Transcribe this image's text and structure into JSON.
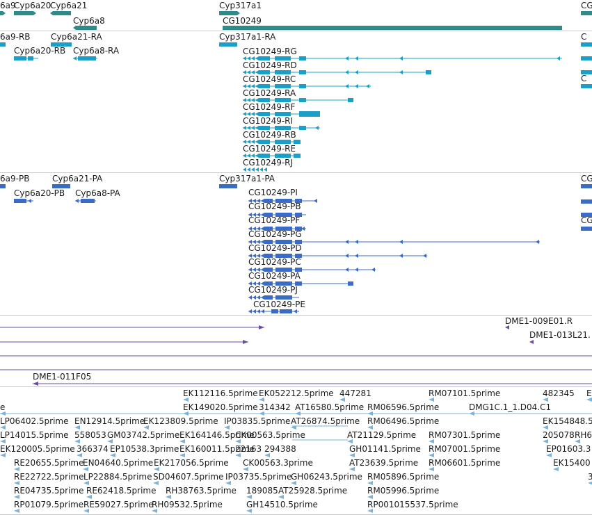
{
  "colors": {
    "gene": "#2e8b8b",
    "transcript": "#1aa0c8",
    "protein": "#3a6bc9",
    "clone": "#6a4ca8",
    "est": "#7ab3de",
    "separator": "#c8c8c8",
    "text": "#1a1a1a"
  },
  "tracks": {
    "genes": {
      "labels": [
        "6a9",
        "Cyp6a20",
        "Cyp6a21",
        "Cyp317a1",
        "Cyp6a8",
        "CG10249",
        "CG"
      ]
    },
    "transcripts": {
      "labels": [
        "6a9-RB",
        "Cyp6a21-RA",
        "Cyp317a1-RA",
        "Cyp6a20-RB",
        "Cyp6a8-RA",
        "CG10249-RG",
        "CG10249-RD",
        "CG10249-RC",
        "CG10249-RA",
        "CG10249-RF",
        "CG10249-RI",
        "CG10249-RB",
        "CG10249-RE",
        "CG10249-RJ",
        "C",
        "C"
      ]
    },
    "proteins": {
      "labels": [
        "6a9-PB",
        "Cyp6a21-PA",
        "Cyp317a1-PA",
        "Cyp6a20-PB",
        "Cyp6a8-PA",
        "CG10249-PI",
        "CG10249-PB",
        "CG10249-PF",
        "CG10249-PG",
        "CG10249-PD",
        "CG10249-PC",
        "CG10249-PA",
        "CG10249-PJ",
        "CG10249-PE",
        "CG",
        "CG"
      ]
    },
    "clones": {
      "labels": [
        "DME1-009E01.R",
        "DME1-013L21.",
        "DME1-011F05"
      ]
    },
    "ests": {
      "labels": [
        "EK112116.5prime",
        "EK052212.5prime",
        "447281",
        "RM07101.5prime",
        "482345",
        "E",
        "e",
        "EK149020.5prime",
        "314342",
        "AT16580.5prime",
        "RM06596.5prime",
        "DMG1C.1_1.D04.C1",
        "LP06402.5prime",
        "EN12914.5prime",
        "EK123809.5prime",
        "IP03835.5prime",
        "AT26874.5prime",
        "RM06496.5prime",
        "EK154848.5",
        "LP14015.5prime",
        "558053",
        "GM03742.5prime",
        "EK164146.5prime",
        "CK00563.5prime",
        "AT21129.5prime",
        "RM07301.5prime",
        "205078",
        "RH6",
        "EK120005.5prime",
        "366374",
        "EP10538.3prime",
        "EK160011.5prime",
        "22163",
        "294388",
        "GH01141.5prime",
        "RM07001.5prime",
        "EP01603.3",
        "RE20655.5prime",
        "EN04640.5prime",
        "EK217056.5prime",
        "CK00563.3prime",
        "AT23639.5prime",
        "RM06601.5prime",
        "EK15400",
        "RE22722.5prime",
        "LP22884.5prime",
        "SD04607.5prime",
        "IP03735.5prime",
        "GH06243.5prime",
        "RM05896.5prime",
        "3",
        "RE04735.5prime",
        "RE62418.5prime",
        "RH38763.5prime",
        "189085",
        "AT25928.5prime",
        "RM05996.5prime",
        "RP01079.5prime",
        "RE59027.5prime",
        "RH09532.5prime",
        "GH14510.5prime",
        "RP001015537.5prime"
      ]
    }
  }
}
